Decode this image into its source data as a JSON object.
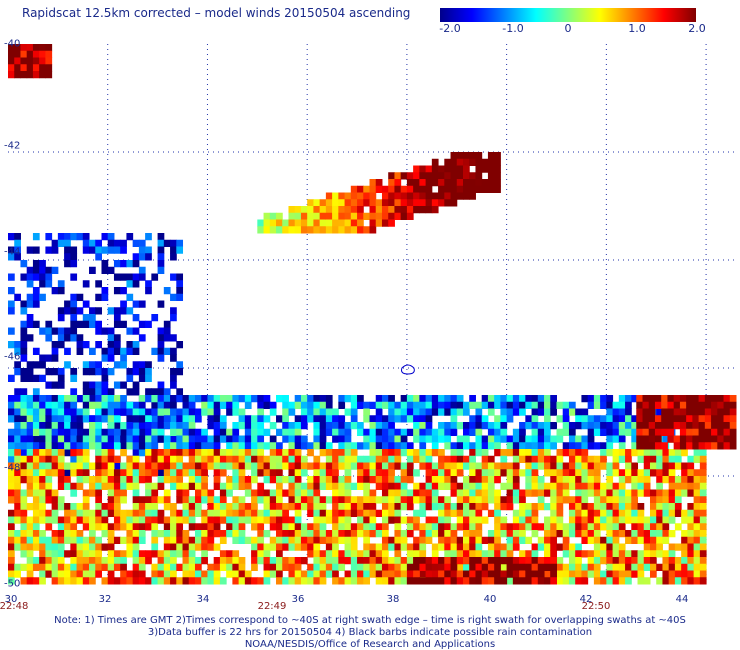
{
  "title": "Rapidscat 12.5km corrected – model winds 20150504 ascending",
  "colorbar": {
    "stops": [
      "#00008b",
      "#0000ff",
      "#0080ff",
      "#00ffff",
      "#80ff80",
      "#ffff00",
      "#ff8000",
      "#ff0000",
      "#800000"
    ],
    "ticks": [
      "-2.0",
      "-1.0",
      "0",
      "1.0",
      "2.0"
    ],
    "range": [
      -2.0,
      2.0
    ]
  },
  "notes": {
    "line1": "Note: 1) Times are GMT 2)Times correspond to ~40S at right swath edge – time is right swath for overlapping swaths at ~40S",
    "line2": "3)Data buffer is 22 hrs for 20150504 4) Black barbs indicate possible rain contamination",
    "line3": "NOAA/NESDIS/Office of Research and Applications"
  },
  "chart_data": {
    "type": "heatmap",
    "title": "Rapidscat 12.5km corrected – model winds 20150504 ascending",
    "xlim": [
      30,
      44.6
    ],
    "ylim": [
      -50,
      -40
    ],
    "x_ticks": [
      "30",
      "32",
      "34",
      "36",
      "38",
      "40",
      "42",
      "44"
    ],
    "y_ticks": [
      "-40",
      "-42",
      "-44",
      "-46",
      "-48",
      "-50"
    ],
    "time_labels": [
      {
        "x": 30,
        "label": "22:48"
      },
      {
        "x": 36,
        "label": "22:49"
      },
      {
        "x": 42,
        "label": "22:50"
      }
    ],
    "value_range": [
      -2.0,
      2.0
    ],
    "regions": [
      {
        "name": "corner-top-left",
        "lon": [
          30.0,
          30.8
        ],
        "lat": [
          -40.6,
          -40.0
        ],
        "value": 2.0
      },
      {
        "name": "upper-band",
        "lon": [
          35.0,
          39.8
        ],
        "lat": [
          -43.5,
          -42.0
        ],
        "value": 1.2
      },
      {
        "name": "left-scatter",
        "lon": [
          30.0,
          33.5
        ],
        "lat": [
          -48.0,
          -43.5
        ],
        "value": -1.6
      },
      {
        "name": "mid-swath",
        "lon": [
          30.0,
          44.0
        ],
        "lat": [
          -50.0,
          -46.5
        ],
        "value": 0.6
      },
      {
        "name": "right-upper",
        "lon": [
          42.6,
          44.6
        ],
        "lat": [
          -47.5,
          -46.5
        ],
        "value": 2.0
      },
      {
        "name": "bottom-red",
        "lon": [
          38.0,
          41.0
        ],
        "lat": [
          -50.0,
          -49.5
        ],
        "value": 2.0
      }
    ]
  }
}
